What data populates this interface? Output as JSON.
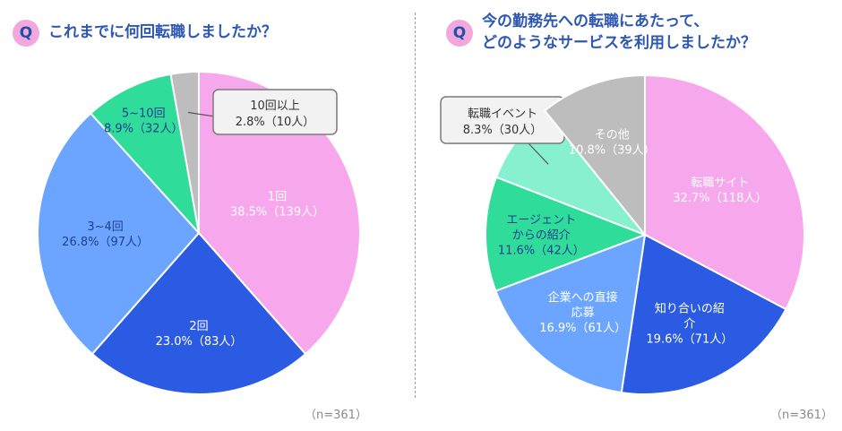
{
  "left": {
    "q_badge": "Q",
    "title": "これまでに何回転職しましたか？",
    "n_label": "（n=361）"
  },
  "right": {
    "q_badge": "Q",
    "title_line1": "今の勤務先への転職にあたって、",
    "title_line2": "どのようなサービスを利用しましたか？",
    "n_label": "（n=361）"
  },
  "chart_data": [
    {
      "type": "pie",
      "title": "これまでに何回転職しましたか？",
      "n": 361,
      "slices": [
        {
          "label": "1回",
          "percent": 38.5,
          "count": 139,
          "value_text": "38.5%（139人）",
          "color": "#f7a8ec",
          "text_color": "#ffffff"
        },
        {
          "label": "2回",
          "percent": 23.0,
          "count": 83,
          "value_text": "23.0%（83人）",
          "color": "#2c5be3",
          "text_color": "#ffffff"
        },
        {
          "label": "3~4回",
          "percent": 26.8,
          "count": 97,
          "value_text": "26.8%（97人）",
          "color": "#6ca5ff",
          "text_color": "#1f3f8f"
        },
        {
          "label": "5~10回",
          "percent": 8.9,
          "count": 32,
          "value_text": "8.9%（32人）",
          "color": "#2fdc9a",
          "text_color": "#1f3f8f"
        },
        {
          "label": "10回以上",
          "percent": 2.8,
          "count": 10,
          "value_text": "2.8%（10人）",
          "color": "#bdbdbd",
          "text_color": "#333333",
          "callout": true
        }
      ]
    },
    {
      "type": "pie",
      "title": "今の勤務先への転職にあたって、どのようなサービスを利用しましたか？",
      "n": 361,
      "slices": [
        {
          "label": "転職サイト",
          "percent": 32.7,
          "count": 118,
          "value_text": "32.7%（118人）",
          "color": "#f7a8ec",
          "text_color": "#ffffff"
        },
        {
          "label": "知り合いの紹介",
          "percent": 19.6,
          "count": 71,
          "value_text": "19.6%（71人）",
          "color": "#2c5be3",
          "text_color": "#ffffff"
        },
        {
          "label": "企業への直接応募",
          "percent": 16.9,
          "count": 61,
          "value_text": "16.9%（61人）",
          "color": "#6ca5ff",
          "text_color": "#ffffff"
        },
        {
          "label": "エージェントからの紹介",
          "percent": 11.6,
          "count": 42,
          "value_text": "11.6%（42人）",
          "color": "#2fdc9a",
          "text_color": "#1f3f8f"
        },
        {
          "label": "転職イベント",
          "percent": 8.3,
          "count": 30,
          "value_text": "8.3%（30人）",
          "color": "#86f0cf",
          "text_color": "#333333",
          "callout": true
        },
        {
          "label": "その他",
          "percent": 10.8,
          "count": 39,
          "value_text": "10.8%（39人）",
          "color": "#bdbdbd",
          "text_color": "#ffffff"
        }
      ]
    }
  ]
}
